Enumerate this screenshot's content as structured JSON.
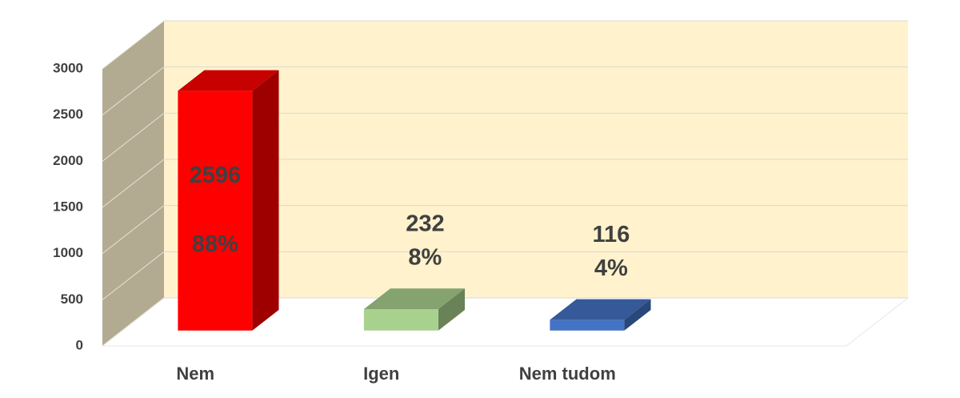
{
  "chart_data": {
    "type": "bar3d",
    "categories": [
      "Nem",
      "Igen",
      "Nem tudom",
      null
    ],
    "values": [
      2596,
      232,
      116,
      null
    ],
    "colors": [
      "#ff0000",
      "#a9d18e",
      "#4472c4",
      null
    ],
    "shares": [
      88,
      8,
      4,
      null
    ],
    "share_labels": [
      "88%",
      "8%",
      "4%",
      null
    ],
    "ylim": [
      0,
      3000
    ],
    "yticks": [
      0,
      500,
      1000,
      1500,
      2000,
      2500,
      3000
    ],
    "grid": true
  }
}
